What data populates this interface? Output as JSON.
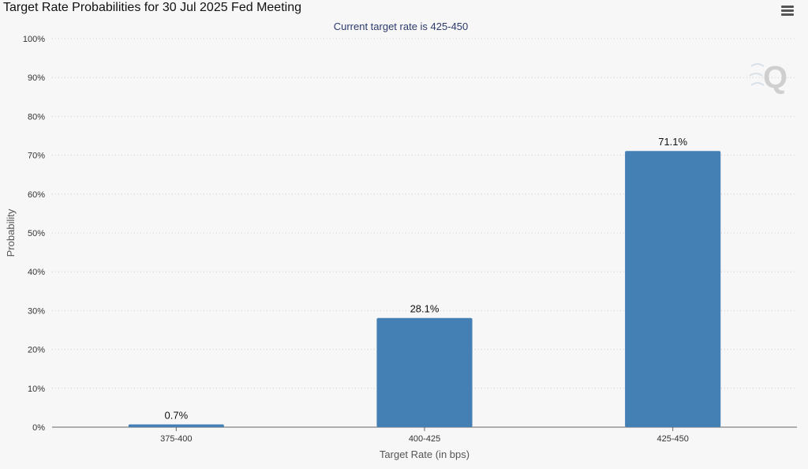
{
  "header": {
    "title": "Target Rate Probabilities for 30 Jul 2025 Fed Meeting",
    "menu_icon": "hamburger-menu-icon"
  },
  "watermark": {
    "text": "Q",
    "icon": "quikstrike-logo-icon"
  },
  "colors": {
    "bar": "#4580b5",
    "grid": "#cccccc",
    "background": "#f7f7f7"
  },
  "chart_data": {
    "type": "bar",
    "title": "Target Rate Probabilities for 30 Jul 2025 Fed Meeting",
    "subtitle": "Current target rate is 425-450",
    "xlabel": "Target Rate (in bps)",
    "ylabel": "Probability",
    "categories": [
      "375-400",
      "400-425",
      "425-450"
    ],
    "values": [
      0.7,
      28.1,
      71.1
    ],
    "data_labels": [
      "0.7%",
      "28.1%",
      "71.1%"
    ],
    "ylim": [
      0,
      100
    ],
    "yticks": [
      "0%",
      "10%",
      "20%",
      "30%",
      "40%",
      "50%",
      "60%",
      "70%",
      "80%",
      "90%",
      "100%"
    ],
    "grid": true,
    "grid_style": "dotted"
  }
}
